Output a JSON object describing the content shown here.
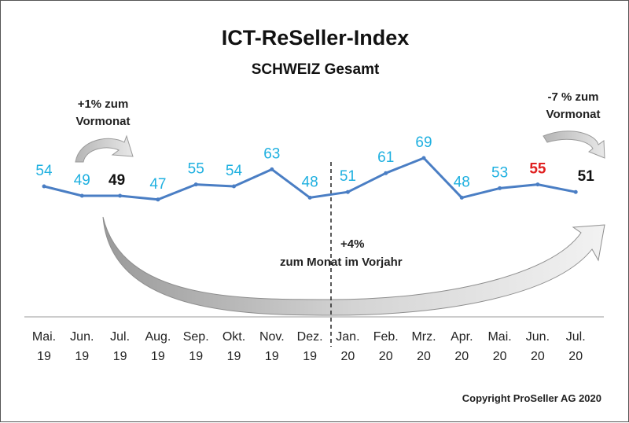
{
  "chart_data": {
    "type": "line",
    "title": "ICT-ReSeller-Index",
    "subtitle": "SCHWEIZ Gesamt",
    "categories": [
      "Mai. 19",
      "Jun. 19",
      "Jul. 19",
      "Aug. 19",
      "Sep. 19",
      "Okt. 19",
      "Nov. 19",
      "Dez. 19",
      "Jan. 20",
      "Feb. 20",
      "Mrz. 20",
      "Apr. 20",
      "Mai. 20",
      "Jun. 20",
      "Jul. 20"
    ],
    "category_lines": [
      [
        "Mai.",
        "19"
      ],
      [
        "Jun.",
        "19"
      ],
      [
        "Jul.",
        "19"
      ],
      [
        "Aug.",
        "19"
      ],
      [
        "Sep.",
        "19"
      ],
      [
        "Okt.",
        "19"
      ],
      [
        "Nov.",
        "19"
      ],
      [
        "Dez.",
        "19"
      ],
      [
        "Jan.",
        "20"
      ],
      [
        "Feb.",
        "20"
      ],
      [
        "Mrz.",
        "20"
      ],
      [
        "Apr.",
        "20"
      ],
      [
        "Mai.",
        "20"
      ],
      [
        "Jun.",
        "20"
      ],
      [
        "Jul.",
        "20"
      ]
    ],
    "values": [
      54,
      49,
      49,
      47,
      55,
      54,
      63,
      48,
      51,
      61,
      69,
      48,
      53,
      55,
      51
    ],
    "label_colors": [
      "#1fb0e0",
      "#1fb0e0",
      "#111111",
      "#1fb0e0",
      "#1fb0e0",
      "#1fb0e0",
      "#1fb0e0",
      "#1fb0e0",
      "#1fb0e0",
      "#1fb0e0",
      "#1fb0e0",
      "#1fb0e0",
      "#1fb0e0",
      "#e02020",
      "#111111"
    ],
    "line_color": "#4a7ec4",
    "annotations": {
      "month": [
        "+1% zum",
        "Vormonat"
      ],
      "month_end": [
        "-7 % zum",
        "Vormonat"
      ],
      "year": [
        "+4%",
        "zum Monat im Vorjahr"
      ]
    },
    "copyright": "Copyright ProSeller AG 2020",
    "grid": false,
    "legend": "none"
  }
}
